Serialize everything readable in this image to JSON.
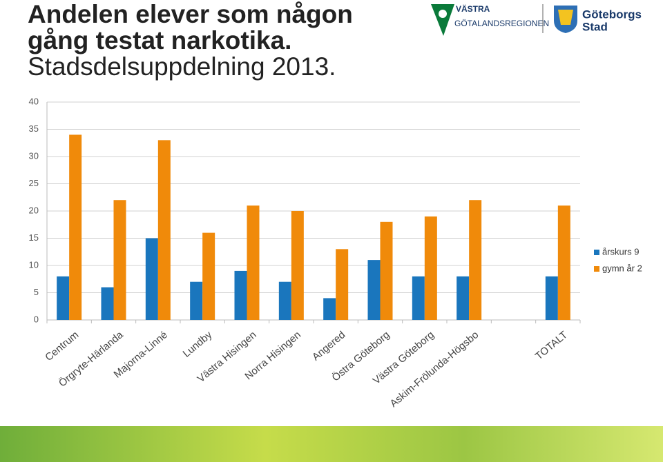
{
  "logos": {
    "vgr": [
      "VÄSTRA",
      "GÖTALANDSREGIONEN"
    ],
    "goteborg": [
      "Göteborgs",
      "Stad"
    ]
  },
  "chart_data": {
    "type": "bar",
    "title": "Andelen elever som någon gång testat narkotika.",
    "subtitle": "Stadsdelsuppdelning 2013.",
    "categories": [
      "Centrum",
      "Örgryte-Härlanda",
      "Majorna-Linné",
      "Lundby",
      "Västra Hisingen",
      "Norra Hisingen",
      "Angered",
      "Östra Göteborg",
      "Västra Göteborg",
      "Askim-Frölunda-Högsbo",
      null,
      "TOTALT"
    ],
    "series": [
      {
        "name": "årskurs 9",
        "color": "#1a76bd",
        "values": [
          8,
          6,
          15,
          7,
          9,
          7,
          4,
          11,
          8,
          8,
          null,
          8
        ]
      },
      {
        "name": "gymn år 2",
        "color": "#f08a0a",
        "values": [
          34,
          22,
          33,
          16,
          21,
          20,
          13,
          18,
          19,
          22,
          null,
          21
        ]
      }
    ],
    "ylim": [
      0,
      40
    ],
    "yticks": [
      0,
      5,
      10,
      15,
      20,
      25,
      30,
      35,
      40
    ],
    "grid": true,
    "legend": "right"
  }
}
